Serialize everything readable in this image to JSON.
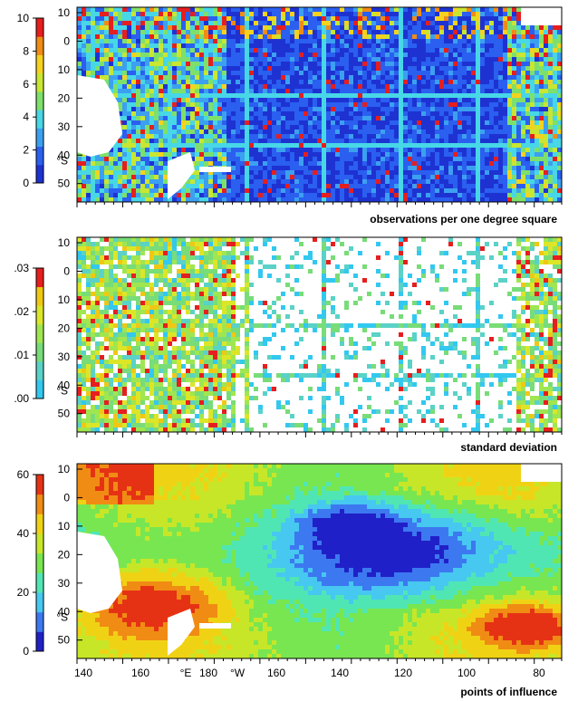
{
  "chart_data": [
    {
      "type": "heatmap",
      "caption": "observations per one degree square",
      "colorbar": {
        "ticks": [
          "10",
          "8",
          "6",
          "4",
          "2",
          "0"
        ],
        "range": [
          0,
          10
        ]
      },
      "lat_ticks": [
        "10",
        "0",
        "10",
        "20",
        "30",
        "40",
        "50"
      ],
      "lat_unit": "°S",
      "palette": [
        "#1e32d2",
        "#2a5ff0",
        "#3ca0f0",
        "#47d7e6",
        "#7ee06a",
        "#c8e632",
        "#f5d21e",
        "#f08c14",
        "#e61e1e"
      ],
      "background": "#1e32d2",
      "land_color": "#ffffff",
      "show_land": true,
      "tracks_color": "#47c8e6"
    },
    {
      "type": "heatmap",
      "caption": "standard deviation",
      "colorbar": {
        "ticks": [
          ".03",
          ".02",
          ".01",
          ".00"
        ],
        "range": [
          0,
          0.03
        ]
      },
      "lat_ticks": [
        "10",
        "0",
        "10",
        "20",
        "30",
        "40",
        "50"
      ],
      "lat_unit": "°S",
      "palette": [
        "#32c8f0",
        "#5ad2c8",
        "#78dc78",
        "#a0e650",
        "#dce628",
        "#f0c814",
        "#e61e1e"
      ],
      "background": "#ffffff",
      "land_color": "#ffffff",
      "show_land": false,
      "tracks_color": "#32aaf0"
    },
    {
      "type": "heatmap",
      "caption": "points of influence",
      "colorbar": {
        "ticks": [
          "60",
          "40",
          "20",
          "0"
        ],
        "range": [
          0,
          60
        ]
      },
      "lat_ticks": [
        "10",
        "0",
        "10",
        "20",
        "30",
        "40",
        "50"
      ],
      "lat_unit": "°S",
      "lon_ticks": [
        "140",
        "160",
        "°E",
        "180",
        "°W",
        "160",
        "140",
        "120",
        "100",
        "80"
      ],
      "palette": [
        "#2020c8",
        "#3c78f0",
        "#46c8f0",
        "#50e6b4",
        "#78e650",
        "#c8e628",
        "#f0d214",
        "#f08c14",
        "#e63214"
      ],
      "background": "#46c8f0",
      "land_color": "#ffffff",
      "show_land": true,
      "tracks_color": "#3c78f0"
    }
  ]
}
